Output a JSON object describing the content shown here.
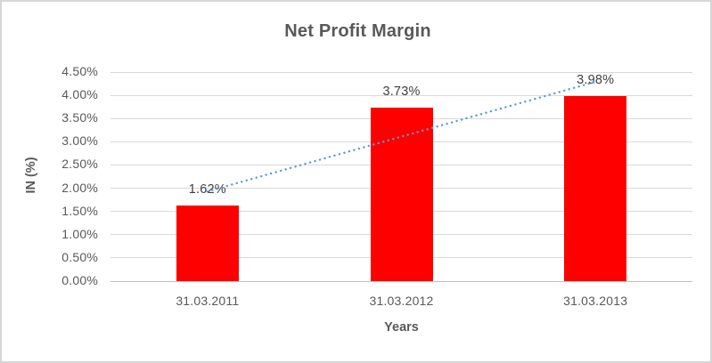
{
  "chart_data": {
    "type": "bar",
    "title": "Net Profit Margin",
    "categories": [
      "31.03.2011",
      "31.03.2012",
      "31.03.2013"
    ],
    "values": [
      1.62,
      3.73,
      3.98
    ],
    "data_labels": [
      "1.62%",
      "3.73%",
      "3.98%"
    ],
    "xlabel": "Years",
    "ylabel": "IN (%)",
    "ylim": [
      0,
      4.5
    ],
    "ytick_step": 0.5,
    "ytick_labels": [
      "0.00%",
      "0.50%",
      "1.00%",
      "1.50%",
      "2.00%",
      "2.50%",
      "3.00%",
      "3.50%",
      "4.00%",
      "4.50%"
    ],
    "grid": true,
    "legend": false,
    "bar_color": "#ff0000",
    "text_color": "#595959",
    "data_label_color": "#404040",
    "gridline_color": "#d9d9d9",
    "border_color": "#d7d7d7",
    "trendline": {
      "type": "linear",
      "style": "round-dot",
      "color": "#5b9bd5",
      "fit_endpoint_values": [
        1.93,
        4.29
      ]
    }
  }
}
